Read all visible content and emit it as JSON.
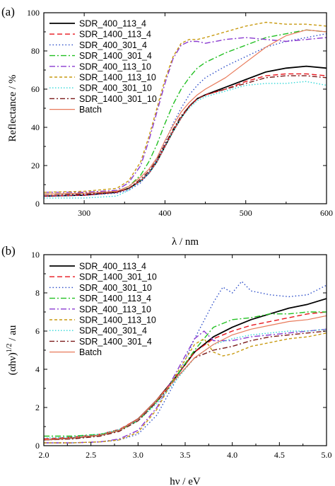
{
  "chart_data": [
    {
      "type": "line",
      "panel_label": "(a)",
      "xlabel": "λ / nm",
      "ylabel": "Reflectance / %",
      "xlim": [
        250,
        600
      ],
      "ylim": [
        0,
        100
      ],
      "xticks": [
        300,
        400,
        500,
        600
      ],
      "yticks": [
        0,
        20,
        40,
        60,
        80,
        100
      ],
      "legend_position": "top-left",
      "series": [
        {
          "name": "SDR_400_113_4",
          "color": "#000000",
          "dash": "",
          "width": 1.8,
          "x": [
            250,
            300,
            340,
            355,
            370,
            380,
            390,
            400,
            410,
            420,
            430,
            440,
            450,
            475,
            500,
            525,
            550,
            575,
            600
          ],
          "y": [
            4,
            4.5,
            6,
            8,
            12,
            16,
            22,
            30,
            38,
            45,
            51,
            55,
            57,
            61,
            65,
            69,
            71,
            72,
            71
          ]
        },
        {
          "name": "SDR_1400_113_4",
          "color": "#e8141c",
          "dash": "7,4",
          "width": 1.4,
          "x": [
            250,
            300,
            340,
            355,
            370,
            380,
            390,
            400,
            410,
            420,
            430,
            440,
            450,
            475,
            500,
            525,
            550,
            575,
            600
          ],
          "y": [
            4,
            4.5,
            6,
            8,
            12,
            16,
            22,
            30,
            38,
            45,
            51,
            55,
            57,
            60,
            64,
            67,
            68,
            68,
            67
          ]
        },
        {
          "name": "SDR_400_301_4",
          "color": "#2a4cc8",
          "dash": "1.5,3",
          "width": 1.4,
          "x": [
            250,
            300,
            340,
            355,
            370,
            380,
            390,
            400,
            410,
            420,
            430,
            440,
            450,
            475,
            500,
            525,
            550,
            575,
            600
          ],
          "y": [
            4,
            4.5,
            5.5,
            7,
            11,
            16,
            23,
            32,
            42,
            50,
            57,
            62,
            66,
            72,
            77,
            82,
            85,
            87,
            89
          ]
        },
        {
          "name": "SDR_1400_301_4",
          "color": "#22c022",
          "dash": "8,3,2,3",
          "width": 1.4,
          "x": [
            250,
            300,
            340,
            355,
            370,
            380,
            390,
            400,
            410,
            420,
            430,
            440,
            450,
            475,
            500,
            525,
            550,
            575,
            600
          ],
          "y": [
            5,
            5.5,
            6.5,
            9,
            15,
            22,
            31,
            42,
            52,
            60,
            66,
            71,
            74,
            79,
            83,
            87,
            89,
            91,
            90
          ]
        },
        {
          "name": "SDR_400_113_10",
          "color": "#8a3ad0",
          "dash": "8,3,2,3",
          "width": 1.4,
          "x": [
            250,
            300,
            340,
            355,
            370,
            380,
            390,
            400,
            410,
            420,
            430,
            440,
            450,
            475,
            500,
            525,
            550,
            575,
            600
          ],
          "y": [
            6,
            6,
            7,
            11,
            20,
            33,
            48,
            63,
            76,
            83,
            85,
            85,
            84,
            86,
            87,
            86,
            85,
            86,
            87
          ]
        },
        {
          "name": "SDR_1400_113_10",
          "color": "#c89a10",
          "dash": "4,3",
          "width": 1.4,
          "x": [
            250,
            300,
            340,
            355,
            370,
            380,
            390,
            400,
            410,
            420,
            430,
            440,
            450,
            475,
            500,
            525,
            550,
            575,
            600
          ],
          "y": [
            6,
            6.5,
            8,
            12,
            22,
            35,
            50,
            65,
            77,
            84,
            86,
            86,
            87,
            90,
            93,
            95,
            94,
            94,
            93
          ]
        },
        {
          "name": "SDR_400_301_10",
          "color": "#30d8d8",
          "dash": "1.5,2.5",
          "width": 1.4,
          "x": [
            250,
            300,
            340,
            355,
            370,
            380,
            390,
            400,
            410,
            420,
            430,
            440,
            450,
            475,
            500,
            525,
            550,
            575,
            600
          ],
          "y": [
            3,
            3,
            4,
            7,
            12,
            16,
            22,
            30,
            38,
            45,
            50,
            54,
            56,
            59,
            62,
            63,
            63,
            64,
            62
          ]
        },
        {
          "name": "SDR_1400_301_10",
          "color": "#7a1a1a",
          "dash": "7,3,2,3",
          "width": 1.4,
          "x": [
            250,
            300,
            340,
            355,
            370,
            380,
            390,
            400,
            410,
            420,
            430,
            440,
            450,
            475,
            500,
            525,
            550,
            575,
            600
          ],
          "y": [
            5,
            5,
            6,
            8,
            13,
            17,
            23,
            31,
            39,
            46,
            51,
            55,
            57,
            60,
            63,
            66,
            67,
            67,
            66
          ]
        },
        {
          "name": "Batch",
          "color": "#e87a5a",
          "dash": "",
          "width": 1.2,
          "x": [
            250,
            300,
            340,
            355,
            370,
            380,
            390,
            400,
            410,
            420,
            430,
            440,
            450,
            475,
            500,
            525,
            550,
            575,
            600
          ],
          "y": [
            5,
            5.5,
            6.5,
            9,
            14,
            18,
            24,
            33,
            41,
            48,
            53,
            57,
            60,
            66,
            74,
            82,
            88,
            91,
            90
          ]
        }
      ]
    },
    {
      "type": "line",
      "panel_label": "(b)",
      "xlabel": "hν / eV",
      "ylabel": "(αhν)1/2 / au",
      "ylabel_main": "(αhν)",
      "ylabel_sup": "1/2",
      "ylabel_tail": " / au",
      "xlim": [
        2.0,
        5.0
      ],
      "ylim": [
        0,
        10
      ],
      "xticks": [
        2.0,
        2.5,
        3.0,
        3.5,
        4.0,
        4.5,
        5.0
      ],
      "xtick_labels": [
        "2.0",
        "2.5",
        "3.0",
        "3.5",
        "4.0",
        "4.5",
        "5.0"
      ],
      "yticks": [
        0,
        2,
        4,
        6,
        8,
        10
      ],
      "legend_position": "top-left",
      "series": [
        {
          "name": "SDR_400_113_4",
          "color": "#000000",
          "dash": "",
          "width": 1.8,
          "x": [
            2.0,
            2.3,
            2.6,
            2.8,
            3.0,
            3.2,
            3.4,
            3.6,
            3.8,
            4.0,
            4.2,
            4.4,
            4.6,
            4.8,
            5.0
          ],
          "y": [
            0.3,
            0.4,
            0.55,
            0.8,
            1.4,
            2.4,
            3.6,
            4.9,
            5.7,
            6.2,
            6.6,
            6.9,
            7.2,
            7.4,
            7.7
          ]
        },
        {
          "name": "SDR_1400_301_10",
          "color": "#e8141c",
          "dash": "7,4",
          "width": 1.4,
          "x": [
            2.0,
            2.3,
            2.6,
            2.8,
            3.0,
            3.2,
            3.4,
            3.6,
            3.8,
            4.0,
            4.2,
            4.4,
            4.6,
            4.8,
            5.0
          ],
          "y": [
            0.35,
            0.45,
            0.6,
            0.85,
            1.4,
            2.4,
            3.6,
            4.9,
            5.6,
            6.0,
            6.3,
            6.5,
            6.7,
            6.9,
            7.0
          ]
        },
        {
          "name": "SDR_400_301_10",
          "color": "#2a4cc8",
          "dash": "1.5,3",
          "width": 1.4,
          "x": [
            2.0,
            2.3,
            2.6,
            2.8,
            3.0,
            3.2,
            3.4,
            3.6,
            3.8,
            3.9,
            4.0,
            4.1,
            4.2,
            4.4,
            4.6,
            4.8,
            5.0
          ],
          "y": [
            0.15,
            0.15,
            0.2,
            0.3,
            0.6,
            1.6,
            3.4,
            5.6,
            7.5,
            8.3,
            8.0,
            8.6,
            8.1,
            7.9,
            7.8,
            7.9,
            8.4
          ]
        },
        {
          "name": "SDR_1400_113_4",
          "color": "#22c022",
          "dash": "8,3,2,3",
          "width": 1.4,
          "x": [
            2.0,
            2.3,
            2.6,
            2.8,
            3.0,
            3.2,
            3.4,
            3.6,
            3.8,
            4.0,
            4.2,
            4.4,
            4.6,
            4.8,
            5.0
          ],
          "y": [
            0.5,
            0.5,
            0.6,
            0.8,
            1.3,
            2.3,
            3.6,
            5.0,
            6.2,
            6.6,
            6.7,
            6.9,
            6.9,
            7.0,
            7.0
          ]
        },
        {
          "name": "SDR_400_113_10",
          "color": "#8a3ad0",
          "dash": "8,3,2,3",
          "width": 1.4,
          "x": [
            2.0,
            2.3,
            2.6,
            2.8,
            3.0,
            3.2,
            3.4,
            3.6,
            3.7,
            3.8,
            4.0,
            4.2,
            4.4,
            4.6,
            4.8,
            5.0
          ],
          "y": [
            0.15,
            0.15,
            0.2,
            0.35,
            0.8,
            2.0,
            3.8,
            5.6,
            6.0,
            5.5,
            5.5,
            5.7,
            5.8,
            5.9,
            6.0,
            6.1
          ]
        },
        {
          "name": "SDR_1400_113_10",
          "color": "#c89a10",
          "dash": "4,3",
          "width": 1.4,
          "x": [
            2.0,
            2.3,
            2.6,
            2.8,
            3.0,
            3.2,
            3.4,
            3.6,
            3.7,
            3.8,
            3.9,
            4.0,
            4.2,
            4.4,
            4.6,
            4.8,
            5.0
          ],
          "y": [
            0.15,
            0.15,
            0.2,
            0.3,
            0.7,
            1.9,
            3.7,
            5.3,
            5.6,
            4.9,
            4.7,
            4.8,
            5.2,
            5.4,
            5.6,
            5.7,
            5.9
          ]
        },
        {
          "name": "SDR_400_301_4",
          "color": "#30d8d8",
          "dash": "1.5,2.5",
          "width": 1.4,
          "x": [
            2.0,
            2.3,
            2.6,
            2.8,
            3.0,
            3.2,
            3.4,
            3.6,
            3.8,
            4.0,
            4.2,
            4.4,
            4.6,
            4.8,
            5.0
          ],
          "y": [
            0.4,
            0.45,
            0.6,
            0.85,
            1.3,
            2.2,
            3.4,
            4.6,
            5.3,
            5.6,
            5.8,
            5.9,
            6.0,
            6.0,
            6.1
          ]
        },
        {
          "name": "SDR_1400_301_4",
          "color": "#7a1a1a",
          "dash": "7,3,2,3",
          "width": 1.4,
          "x": [
            2.0,
            2.3,
            2.6,
            2.8,
            3.0,
            3.2,
            3.4,
            3.6,
            3.8,
            4.0,
            4.2,
            4.4,
            4.6,
            4.8,
            5.0
          ],
          "y": [
            0.3,
            0.35,
            0.5,
            0.75,
            1.3,
            2.3,
            3.5,
            4.6,
            5.0,
            5.2,
            5.5,
            5.7,
            5.8,
            5.9,
            6.0
          ]
        },
        {
          "name": "Batch",
          "color": "#e87a5a",
          "dash": "",
          "width": 1.2,
          "x": [
            2.0,
            2.3,
            2.6,
            2.8,
            3.0,
            3.2,
            3.4,
            3.6,
            3.8,
            4.0,
            4.2,
            4.4,
            4.6,
            4.8,
            5.0
          ],
          "y": [
            0.3,
            0.4,
            0.55,
            0.8,
            1.4,
            2.4,
            3.5,
            4.6,
            5.3,
            5.8,
            6.1,
            6.3,
            6.5,
            6.6,
            6.8
          ]
        }
      ]
    }
  ]
}
